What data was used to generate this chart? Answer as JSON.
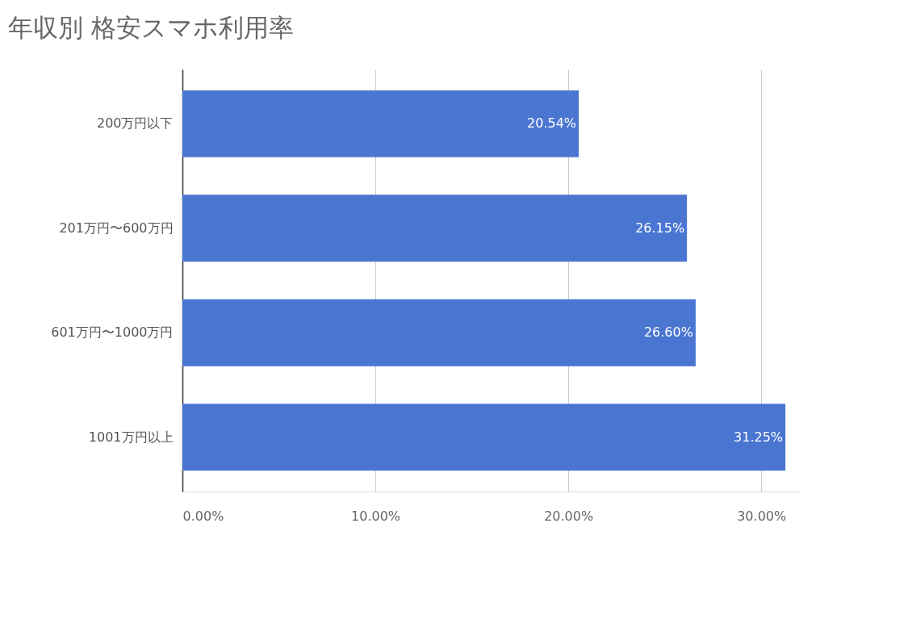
{
  "chart_data": {
    "type": "bar",
    "orientation": "horizontal",
    "title": "年収別 格安スマホ利用率",
    "categories": [
      "200万円以下",
      "201万円〜600万円",
      "601万円〜1000万円",
      "1001万円以上"
    ],
    "values": [
      20.54,
      26.15,
      26.6,
      31.25
    ],
    "value_labels": [
      "20.54%",
      "26.15%",
      "26.60%",
      "31.25%"
    ],
    "color": "#4a76d2",
    "xlim": [
      0,
      32
    ],
    "xticks": [
      {
        "value": 0,
        "label": "0.00%"
      },
      {
        "value": 10,
        "label": "10.00%"
      },
      {
        "value": 20,
        "label": "20.00%"
      },
      {
        "value": 30,
        "label": "30.00%"
      }
    ],
    "grid": "x"
  }
}
